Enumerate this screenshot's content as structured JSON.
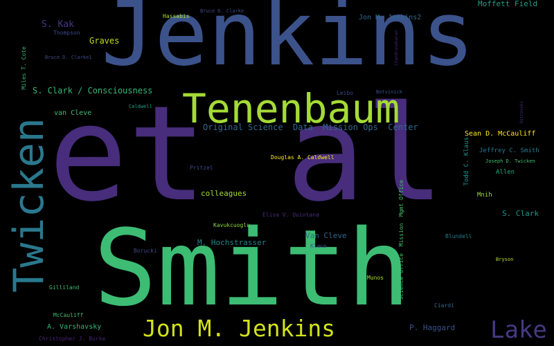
{
  "words": [
    {
      "text": "Jenkins",
      "color": "#3b528b"
    },
    {
      "text": "et al",
      "color": "#472d7b"
    },
    {
      "text": "Smith",
      "color": "#3dbc74"
    },
    {
      "text": "Tenenbaum",
      "color": "#a5db36"
    },
    {
      "text": "Twicken",
      "color": "#2a788e"
    },
    {
      "text": "Jon M. Jenkins",
      "color": "#d2e21b"
    },
    {
      "text": "Lake",
      "color": "#443983"
    },
    {
      "text": "Original Science  Data  Mission Ops  Center",
      "color": "#31688e"
    },
    {
      "text": "S. Clark / Consciousness",
      "color": "#35b779"
    },
    {
      "text": "Moffett Field",
      "color": "#1fa187"
    },
    {
      "text": "S. Kak",
      "color": "#443983"
    },
    {
      "text": "Graves",
      "color": "#bddf26"
    },
    {
      "text": "Jon M. Jenkins2",
      "color": "#31688e"
    },
    {
      "text": "Sean D. McCauliff",
      "color": "#fde725"
    },
    {
      "text": "Jeffrey C. Smith",
      "color": "#2a788e"
    },
    {
      "text": "Joseph D. Twicken",
      "color": "#44bf70"
    },
    {
      "text": "Allen",
      "color": "#22a884"
    },
    {
      "text": "Mnih",
      "color": "#a2da37"
    },
    {
      "text": "S. Clark",
      "color": "#21918c"
    },
    {
      "text": "colleagues",
      "color": "#a5db36"
    },
    {
      "text": "M. Hochstrasser",
      "color": "#25848e"
    },
    {
      "text": "Van Cleve",
      "color": "#31688e"
    },
    {
      "text": "van Cleve",
      "color": "#3dbc74"
    },
    {
      "text": "A. Varshavsky",
      "color": "#35b779"
    },
    {
      "text": "P. Haggard",
      "color": "#3b528b"
    },
    {
      "text": "Hassabis",
      "color": "#addc30"
    },
    {
      "text": "Bruce D. Clarke",
      "color": "#3e4989"
    },
    {
      "text": "Thompson",
      "color": "#3e4989"
    },
    {
      "text": "Bruce D. Clarke1",
      "color": "#3e4989"
    },
    {
      "text": "Miles T. Cote",
      "color": "#35b779"
    },
    {
      "text": "Caldwell",
      "color": "#1fa187"
    },
    {
      "text": "Leibo",
      "color": "#3e4989"
    },
    {
      "text": "Botvinick",
      "color": "#3b528b"
    },
    {
      "text": "Douglas A. Caldwell",
      "color": "#fde725"
    },
    {
      "text": "Pritzel",
      "color": "#3e4989"
    },
    {
      "text": "Elisa V. Quintana",
      "color": "#472d7b"
    },
    {
      "text": "Kavukcuoglu",
      "color": "#8fd744"
    },
    {
      "text": "Klaus",
      "color": "#3b528b"
    },
    {
      "text": "Borucki",
      "color": "#3e4989"
    },
    {
      "text": "Blundell",
      "color": "#2a788e"
    },
    {
      "text": "Bryson",
      "color": "#bddf26"
    },
    {
      "text": "Gilliland",
      "color": "#3dbc74"
    },
    {
      "text": "Munos",
      "color": "#addc30"
    },
    {
      "text": "Ciardi",
      "color": "#31688e"
    },
    {
      "text": "McCauliff",
      "color": "#44bf70"
    },
    {
      "text": "Christopher J. Burke",
      "color": "#482576"
    },
    {
      "text": "Todd C. Klaus",
      "color": "#21918c"
    },
    {
      "text": "Science Office  Mission  Mgmt Office",
      "color": "#4ac16d"
    },
    {
      "text": "Chandrasekaran",
      "color": "#482576"
    },
    {
      "text": "Ostrovski",
      "color": "#472d7b"
    }
  ]
}
